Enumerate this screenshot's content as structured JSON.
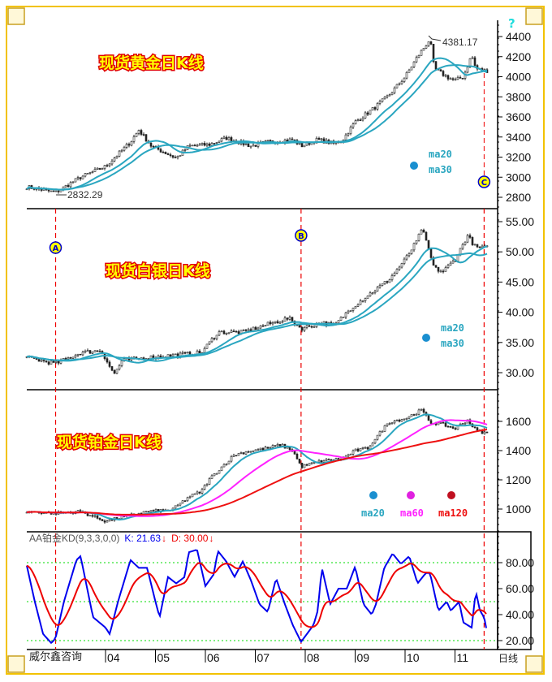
{
  "frame": {
    "help_icon": "?",
    "period_label": "日线",
    "source_label": "威尔鑫咨询"
  },
  "colors": {
    "candle": "#222222",
    "ma_teal": "#2aa6c0",
    "ma_magenta": "#ff22ff",
    "ma_red": "#ee1111",
    "k_line": "#0000ee",
    "d_line": "#ee0000",
    "grid_green": "#00dd00",
    "marker_dash": "#ee0000",
    "frame_gold": "#f2c200",
    "marker_fill": "#ffff00",
    "marker_text": "#0000cc"
  },
  "x_axis": {
    "ticks": [
      {
        "label": "04",
        "date": "2004-01"
      },
      {
        "label": "05",
        "date": "2005-01"
      },
      {
        "label": "06",
        "date": "2006-01"
      },
      {
        "label": "07",
        "date": "2007-01"
      },
      {
        "label": "08",
        "date": "2008-01"
      },
      {
        "label": "09",
        "date": "2009-01"
      },
      {
        "label": "10",
        "date": "2010-01"
      },
      {
        "label": "11",
        "date": "2011-01"
      }
    ]
  },
  "markers": [
    {
      "label": "A",
      "date": "2003-01"
    },
    {
      "label": "B",
      "date": "2007-12"
    },
    {
      "label": "C",
      "date": "2011-08"
    }
  ],
  "chart_data": [
    {
      "type": "candlestick",
      "title": "现货黄金日K线",
      "ylim": [
        2750,
        4450
      ],
      "yticks": [
        2800,
        3000,
        3200,
        3400,
        3600,
        3800,
        4000,
        4200,
        4400
      ],
      "moving_averages": [
        "ma20",
        "ma30"
      ],
      "annotations": [
        {
          "text": "4381.17",
          "date": "2010-07"
        },
        {
          "text": "2832.29",
          "date": "2003-01"
        }
      ],
      "closes": [
        [
          "2002-06",
          2905
        ],
        [
          "2003-01",
          2848
        ],
        [
          "2003-07",
          3000
        ],
        [
          "2004-01",
          3107
        ],
        [
          "2004-07",
          3350
        ],
        [
          "2004-09",
          3470
        ],
        [
          "2004-12",
          3310
        ],
        [
          "2005-06",
          3190
        ],
        [
          "2005-09",
          3310
        ],
        [
          "2006-02",
          3325
        ],
        [
          "2006-06",
          3390
        ],
        [
          "2006-12",
          3310
        ],
        [
          "2007-04",
          3350
        ],
        [
          "2007-10",
          3374
        ],
        [
          "2007-12",
          3310
        ],
        [
          "2008-04",
          3374
        ],
        [
          "2008-08",
          3333
        ],
        [
          "2008-10",
          3374
        ],
        [
          "2009-01",
          3550
        ],
        [
          "2009-05",
          3670
        ],
        [
          "2009-09",
          3810
        ],
        [
          "2010-01",
          4000
        ],
        [
          "2010-04",
          4200
        ],
        [
          "2010-07",
          4376
        ],
        [
          "2010-08",
          4080
        ],
        [
          "2010-11",
          4000
        ],
        [
          "2011-01",
          3960
        ],
        [
          "2011-03",
          4000
        ],
        [
          "2011-05",
          4215
        ],
        [
          "2011-06",
          4080
        ],
        [
          "2011-08",
          4060
        ]
      ]
    },
    {
      "type": "candlestick",
      "title": "现货白银日K线",
      "ylim": [
        28,
        56.5
      ],
      "yticks": [
        30,
        35,
        40,
        45,
        50,
        55
      ],
      "moving_averages": [
        "ma20",
        "ma30"
      ],
      "closes": [
        [
          "2002-06",
          32.5
        ],
        [
          "2003-01",
          31.5
        ],
        [
          "2003-07",
          33.3
        ],
        [
          "2003-12",
          33.7
        ],
        [
          "2004-03",
          29.7
        ],
        [
          "2004-05",
          32.0
        ],
        [
          "2004-11",
          32.5
        ],
        [
          "2005-07",
          33.0
        ],
        [
          "2005-12",
          33.3
        ],
        [
          "2006-04",
          36.7
        ],
        [
          "2006-10",
          36.7
        ],
        [
          "2007-04",
          38.0
        ],
        [
          "2007-09",
          39.0
        ],
        [
          "2007-12",
          37.3
        ],
        [
          "2008-05",
          38.3
        ],
        [
          "2008-08",
          37.8
        ],
        [
          "2008-12",
          40.7
        ],
        [
          "2009-05",
          43.3
        ],
        [
          "2009-09",
          45.3
        ],
        [
          "2010-01",
          48.7
        ],
        [
          "2010-04",
          52.0
        ],
        [
          "2010-05",
          54.0
        ],
        [
          "2010-08",
          47.3
        ],
        [
          "2010-10",
          46.7
        ],
        [
          "2011-01",
          48.7
        ],
        [
          "2011-04",
          52.7
        ],
        [
          "2011-06",
          50.7
        ],
        [
          "2011-08",
          50.7
        ]
      ]
    },
    {
      "type": "candlestick",
      "title": "现货铂金日K线",
      "ylim": [
        880,
        1760
      ],
      "yticks": [
        1000,
        1200,
        1400,
        1600
      ],
      "moving_averages": [
        "ma20",
        "ma60",
        "ma120"
      ],
      "closes": [
        [
          "2002-06",
          983
        ],
        [
          "2003-01",
          972
        ],
        [
          "2003-07",
          983
        ],
        [
          "2004-01",
          917
        ],
        [
          "2004-05",
          945
        ],
        [
          "2004-11",
          983
        ],
        [
          "2005-05",
          995
        ],
        [
          "2005-09",
          1083
        ],
        [
          "2005-12",
          1120
        ],
        [
          "2006-02",
          1205
        ],
        [
          "2006-05",
          1290
        ],
        [
          "2006-08",
          1372
        ],
        [
          "2006-12",
          1400
        ],
        [
          "2007-04",
          1417
        ],
        [
          "2007-07",
          1440
        ],
        [
          "2007-10",
          1400
        ],
        [
          "2007-12",
          1290
        ],
        [
          "2008-05",
          1330
        ],
        [
          "2008-10",
          1345
        ],
        [
          "2009-01",
          1400
        ],
        [
          "2009-04",
          1417
        ],
        [
          "2009-09",
          1594
        ],
        [
          "2010-01",
          1620
        ],
        [
          "2010-05",
          1678
        ],
        [
          "2010-07",
          1594
        ],
        [
          "2010-10",
          1580
        ],
        [
          "2011-01",
          1550
        ],
        [
          "2011-04",
          1610
        ],
        [
          "2011-06",
          1540
        ],
        [
          "2011-08",
          1522
        ]
      ]
    },
    {
      "type": "line",
      "title": "AA铂金KD(9,3,3,0,0)",
      "ylim": [
        15,
        100
      ],
      "yticks": [
        20,
        40,
        60,
        80
      ],
      "gridlines": [
        20,
        50,
        80
      ],
      "series": [
        {
          "name": "K",
          "value_label": "K: 21.63",
          "direction": "↓",
          "values": [
            [
              "2002-06",
              78.8
            ],
            [
              "2002-08",
              50
            ],
            [
              "2002-10",
              25
            ],
            [
              "2002-12",
              18
            ],
            [
              "2003-01",
              22
            ],
            [
              "2003-03",
              50
            ],
            [
              "2003-06",
              82
            ],
            [
              "2003-07",
              85
            ],
            [
              "2003-10",
              38
            ],
            [
              "2004-01",
              30
            ],
            [
              "2004-02",
              25
            ],
            [
              "2004-04",
              50
            ],
            [
              "2004-07",
              82
            ],
            [
              "2004-09",
              76
            ],
            [
              "2004-11",
              76
            ],
            [
              "2005-01",
              50
            ],
            [
              "2005-02",
              38
            ],
            [
              "2005-04",
              69
            ],
            [
              "2005-06",
              64
            ],
            [
              "2005-08",
              69
            ],
            [
              "2005-09",
              88
            ],
            [
              "2005-11",
              90
            ],
            [
              "2006-01",
              62
            ],
            [
              "2006-03",
              71
            ],
            [
              "2006-04",
              89
            ],
            [
              "2006-06",
              81
            ],
            [
              "2006-08",
              69
            ],
            [
              "2006-10",
              81
            ],
            [
              "2006-12",
              66
            ],
            [
              "2007-02",
              48
            ],
            [
              "2007-04",
              42
            ],
            [
              "2007-06",
              68
            ],
            [
              "2007-08",
              49
            ],
            [
              "2007-10",
              32
            ],
            [
              "2007-12",
              19
            ],
            [
              "2008-03",
              32
            ],
            [
              "2008-04",
              43
            ],
            [
              "2008-05",
              76
            ],
            [
              "2008-07",
              48
            ],
            [
              "2008-09",
              60
            ],
            [
              "2008-11",
              60
            ],
            [
              "2009-01",
              77
            ],
            [
              "2009-03",
              48
            ],
            [
              "2009-05",
              40
            ],
            [
              "2009-06",
              48
            ],
            [
              "2009-08",
              76
            ],
            [
              "2009-10",
              87
            ],
            [
              "2009-12",
              79
            ],
            [
              "2010-02",
              85
            ],
            [
              "2010-04",
              64
            ],
            [
              "2010-06",
              72
            ],
            [
              "2010-07",
              72
            ],
            [
              "2010-09",
              43
            ],
            [
              "2010-11",
              50
            ],
            [
              "2010-12",
              43
            ],
            [
              "2011-02",
              50
            ],
            [
              "2011-03",
              34
            ],
            [
              "2011-05",
              30
            ],
            [
              "2011-06",
              58
            ],
            [
              "2011-07",
              43
            ],
            [
              "2011-08",
              38
            ],
            [
              "2011-09",
              21.63
            ]
          ]
        },
        {
          "name": "D",
          "value_label": "D: 30.00",
          "direction": "↓"
        }
      ]
    }
  ]
}
